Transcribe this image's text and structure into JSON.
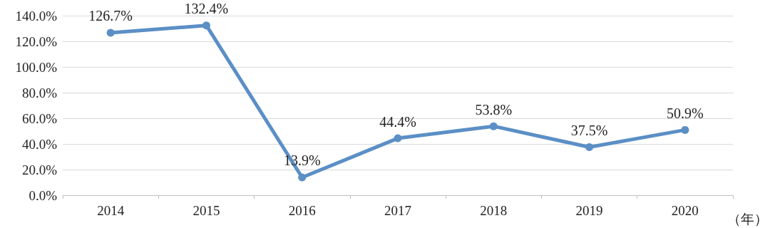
{
  "chart_data": {
    "type": "line",
    "xlabel": "（年）",
    "categories": [
      "2014",
      "2015",
      "2016",
      "2017",
      "2018",
      "2019",
      "2020"
    ],
    "series": [
      {
        "color": "#5b8fc6",
        "values": [
          126.7,
          132.4,
          13.9,
          44.4,
          53.8,
          37.5,
          50.9
        ],
        "value_labels": [
          "126.7%",
          "132.4%",
          "13.9%",
          "44.4%",
          "53.8%",
          "37.5%",
          "50.9%"
        ]
      }
    ],
    "ylim": [
      0,
      140
    ],
    "yticks": [
      {
        "value": 0,
        "label": "0.0%"
      },
      {
        "value": 20,
        "label": "20.0%"
      },
      {
        "value": 40,
        "label": "40.0%"
      },
      {
        "value": 60,
        "label": "60.0%"
      },
      {
        "value": 80,
        "label": "80.0%"
      },
      {
        "value": 100,
        "label": "100.0%"
      },
      {
        "value": 120,
        "label": "120.0%"
      },
      {
        "value": 140,
        "label": "140.0%"
      }
    ],
    "grid": "y",
    "marker": "circle",
    "line_style": "solid"
  }
}
